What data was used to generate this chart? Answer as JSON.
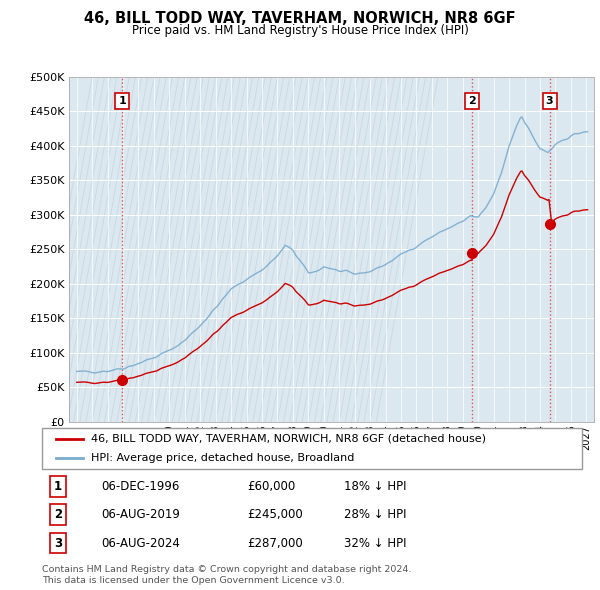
{
  "title": "46, BILL TODD WAY, TAVERHAM, NORWICH, NR8 6GF",
  "subtitle": "Price paid vs. HM Land Registry's House Price Index (HPI)",
  "sale_prices": [
    60000,
    245000,
    287000
  ],
  "sale_labels": [
    "1",
    "2",
    "3"
  ],
  "sale_hpi_pct": [
    "18% ↓ HPI",
    "28% ↓ HPI",
    "32% ↓ HPI"
  ],
  "sale_date_labels": [
    "06-DEC-1996",
    "06-AUG-2019",
    "06-AUG-2024"
  ],
  "legend_property": "46, BILL TODD WAY, TAVERHAM, NORWICH, NR8 6GF (detached house)",
  "legend_hpi": "HPI: Average price, detached house, Broadland",
  "footer": "Contains HM Land Registry data © Crown copyright and database right 2024.\nThis data is licensed under the Open Government Licence v3.0.",
  "property_color": "#cc0000",
  "hpi_color": "#7aabcf",
  "ylim": [
    0,
    500000
  ],
  "yticks": [
    0,
    50000,
    100000,
    150000,
    200000,
    250000,
    300000,
    350000,
    400000,
    450000,
    500000
  ],
  "xlim_start": 1993.5,
  "xlim_end": 2027.5,
  "panel_bg": "#dce8f0"
}
